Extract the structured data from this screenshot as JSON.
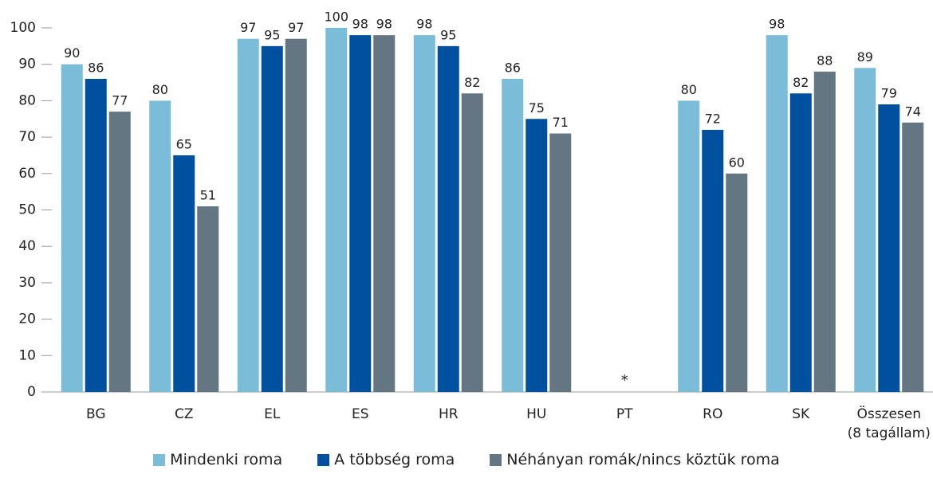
{
  "chart_data": {
    "type": "bar",
    "categories": [
      "BG",
      "CZ",
      "EL",
      "ES",
      "HR",
      "HU",
      "PT",
      "RO",
      "SK",
      "Összesen\n(8 tagállam)"
    ],
    "series": [
      {
        "name": "Mindenki roma",
        "color": "#7bbcd8",
        "values": [
          90,
          80,
          97,
          100,
          98,
          86,
          null,
          80,
          98,
          89
        ]
      },
      {
        "name": "A többség roma",
        "color": "#0050a0",
        "values": [
          86,
          65,
          95,
          98,
          95,
          75,
          null,
          72,
          82,
          79
        ]
      },
      {
        "name": "Néhányan romák/nincs köztük roma",
        "color": "#647682",
        "values": [
          77,
          51,
          97,
          98,
          82,
          71,
          null,
          60,
          88,
          74
        ]
      }
    ],
    "annotations": [
      {
        "category": "PT",
        "text": "*"
      }
    ],
    "ylim": [
      0,
      100
    ],
    "yticks": [
      0,
      10,
      20,
      30,
      40,
      50,
      60,
      70,
      80,
      90,
      100
    ],
    "legend": "bottom"
  }
}
